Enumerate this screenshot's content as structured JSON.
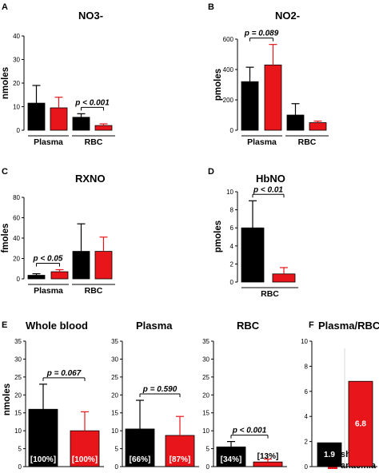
{
  "legend": [
    {
      "label": "sham",
      "color": "#000000"
    },
    {
      "label": "anaemia",
      "color": "#e8161b"
    }
  ],
  "chart_data": [
    {
      "panel": "A",
      "type": "bar",
      "title": "NO3-",
      "ylabel": "nmoles",
      "ylim": [
        0,
        40
      ],
      "ticks": [
        0,
        10,
        20,
        30,
        40
      ],
      "groups": [
        "Plasma",
        "RBC"
      ],
      "series": [
        {
          "name": "sham",
          "values": [
            11.5,
            5.5
          ],
          "err": [
            7.5,
            1.5
          ]
        },
        {
          "name": "anaemia",
          "values": [
            9.5,
            2.0
          ],
          "err": [
            4.5,
            0.7
          ]
        }
      ],
      "annotations": [
        {
          "text": "p < 0.001",
          "group": 1
        }
      ]
    },
    {
      "panel": "B",
      "type": "bar",
      "title": "NO2-",
      "ylabel": "pmoles",
      "ylim": [
        0,
        600
      ],
      "ticks": [
        0,
        200,
        400,
        600
      ],
      "groups": [
        "Plasma",
        "RBC"
      ],
      "series": [
        {
          "name": "sham",
          "values": [
            320,
            100
          ],
          "err": [
            95,
            75
          ]
        },
        {
          "name": "anaemia",
          "values": [
            430,
            50
          ],
          "err": [
            135,
            10
          ]
        }
      ],
      "annotations": [
        {
          "text": "p = 0.089",
          "group": 0
        }
      ]
    },
    {
      "panel": "C",
      "type": "bar",
      "title": "RXNO",
      "ylabel": "fmoles",
      "ylim": [
        0,
        80
      ],
      "ticks": [
        0,
        20,
        40,
        60,
        80
      ],
      "groups": [
        "Plasma",
        "RBC"
      ],
      "series": [
        {
          "name": "sham",
          "values": [
            3.5,
            27
          ],
          "err": [
            1.5,
            27
          ]
        },
        {
          "name": "anaemia",
          "values": [
            7,
            27
          ],
          "err": [
            2,
            14
          ]
        }
      ],
      "annotations": [
        {
          "text": "p < 0.05",
          "group": 0
        }
      ]
    },
    {
      "panel": "D",
      "type": "bar",
      "title": "HbNO",
      "ylabel": "pmoles",
      "ylim": [
        0,
        10
      ],
      "ticks": [
        0,
        2,
        4,
        6,
        8,
        10
      ],
      "groups": [
        "RBC"
      ],
      "series": [
        {
          "name": "sham",
          "values": [
            6
          ],
          "err": [
            3
          ]
        },
        {
          "name": "anaemia",
          "values": [
            0.9
          ],
          "err": [
            0.7
          ]
        }
      ],
      "annotations": [
        {
          "text": "p < 0.01",
          "group": 0
        }
      ]
    },
    {
      "panel": "E",
      "type": "bar",
      "title": "Whole blood",
      "ylabel": "nmoles",
      "ylim": [
        0,
        35
      ],
      "ticks": [
        0,
        5,
        10,
        15,
        20,
        25,
        30,
        35
      ],
      "groups": [
        ""
      ],
      "series": [
        {
          "name": "sham",
          "values": [
            16
          ],
          "err": [
            7
          ],
          "label": "[100%]"
        },
        {
          "name": "anaemia",
          "values": [
            10
          ],
          "err": [
            5.3
          ],
          "label": "[100%]"
        }
      ],
      "annotations": [
        {
          "text": "p = 0.067",
          "group": 0
        }
      ]
    },
    {
      "panel": "E",
      "type": "bar",
      "title": "Plasma",
      "ylabel": "",
      "ylim": [
        0,
        35
      ],
      "ticks": [
        0,
        5,
        10,
        15,
        20,
        25,
        30,
        35
      ],
      "groups": [
        ""
      ],
      "series": [
        {
          "name": "sham",
          "values": [
            10.5
          ],
          "err": [
            8
          ],
          "label": "[66%]"
        },
        {
          "name": "anaemia",
          "values": [
            8.7
          ],
          "err": [
            5.3
          ],
          "label": "[87%]"
        }
      ],
      "annotations": [
        {
          "text": "p = 0.590",
          "group": 0
        }
      ]
    },
    {
      "panel": "E",
      "type": "bar",
      "title": "RBC",
      "ylabel": "",
      "ylim": [
        0,
        35
      ],
      "ticks": [
        0,
        5,
        10,
        15,
        20,
        25,
        30,
        35
      ],
      "groups": [
        ""
      ],
      "series": [
        {
          "name": "sham",
          "values": [
            5.5
          ],
          "err": [
            1.5
          ],
          "label": "[34%]"
        },
        {
          "name": "anaemia",
          "values": [
            1.3
          ],
          "err": [
            0.8
          ],
          "label": "[13%]"
        }
      ],
      "annotations": [
        {
          "text": "p < 0.001",
          "group": 0
        }
      ]
    },
    {
      "panel": "F",
      "type": "bar",
      "title": "Plasma/RBC",
      "ylabel": "",
      "ylim": [
        0,
        10
      ],
      "ticks": [
        0,
        2,
        4,
        6,
        8,
        10
      ],
      "groups": [
        ""
      ],
      "series": [
        {
          "name": "sham",
          "values": [
            1.9
          ],
          "label": "1.9"
        },
        {
          "name": "anaemia",
          "values": [
            6.8
          ],
          "label": "6.8"
        }
      ]
    }
  ]
}
